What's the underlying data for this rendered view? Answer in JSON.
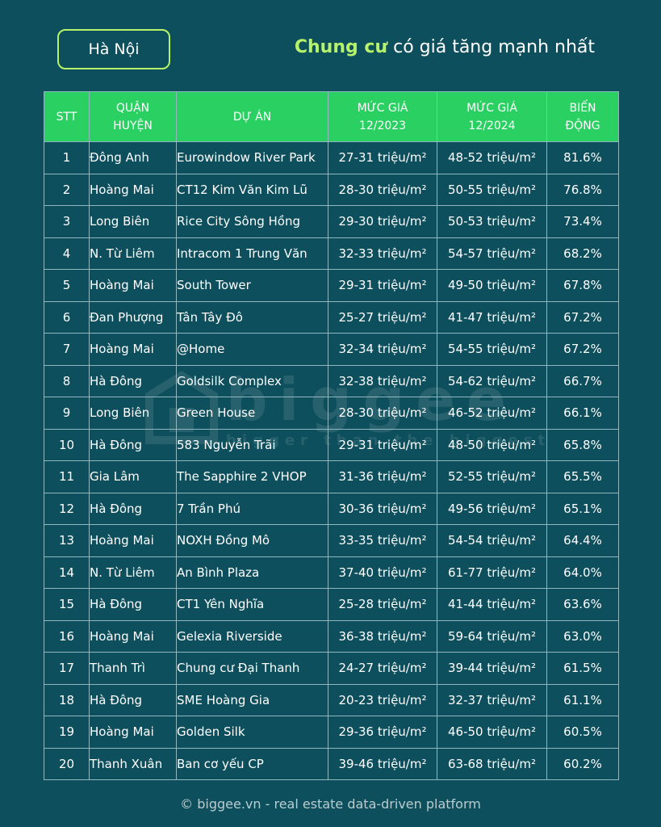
{
  "city": "Hà Nội",
  "headline": {
    "highlight": "Chung cư",
    "rest": " có giá tăng mạnh nhất"
  },
  "watermark": {
    "brand": "biggee",
    "slogan": "bigger than the biggest"
  },
  "footer": "© biggee.vn - real estate data-driven platform",
  "colors": {
    "background": "#0d4f5c",
    "header": "#2bd062",
    "accent": "#b7f36a"
  },
  "chart_data": {
    "type": "table",
    "columns": [
      {
        "key": "stt",
        "line1": "STT",
        "line2": ""
      },
      {
        "key": "district",
        "line1": "QUẬN",
        "line2": "HUYỆN"
      },
      {
        "key": "project",
        "line1": "DỰ ÁN",
        "line2": ""
      },
      {
        "key": "price_2023",
        "line1": "MỨC GIÁ",
        "line2": "12/2023"
      },
      {
        "key": "price_2024",
        "line1": "MỨC GIÁ",
        "line2": "12/2024"
      },
      {
        "key": "change",
        "line1": "BIẾN",
        "line2": "ĐỘNG"
      }
    ],
    "rows": [
      {
        "stt": "1",
        "district": "Đông Anh",
        "project": "Eurowindow River Park",
        "price_2023": "27-31 triệu/m²",
        "price_2024": "48-52 triệu/m²",
        "change": "81.6%"
      },
      {
        "stt": "2",
        "district": "Hoàng Mai",
        "project": "CT12 Kim Văn Kim Lũ",
        "price_2023": "28-30 triệu/m²",
        "price_2024": "50-55 triệu/m²",
        "change": "76.8%"
      },
      {
        "stt": "3",
        "district": "Long Biên",
        "project": "Rice City Sông Hồng",
        "price_2023": "29-30 triệu/m²",
        "price_2024": "50-53 triệu/m²",
        "change": "73.4%"
      },
      {
        "stt": "4",
        "district": "N. Từ Liêm",
        "project": "Intracom 1 Trung Văn",
        "price_2023": "32-33 triệu/m²",
        "price_2024": "54-57 triệu/m²",
        "change": "68.2%"
      },
      {
        "stt": "5",
        "district": "Hoàng Mai",
        "project": "South Tower",
        "price_2023": "29-31 triệu/m²",
        "price_2024": "49-50 triệu/m²",
        "change": "67.8%"
      },
      {
        "stt": "6",
        "district": "Đan Phượng",
        "project": "Tân Tây Đô",
        "price_2023": "25-27 triệu/m²",
        "price_2024": "41-47 triệu/m²",
        "change": "67.2%"
      },
      {
        "stt": "7",
        "district": "Hoàng Mai",
        "project": "@Home",
        "price_2023": "32-34 triệu/m²",
        "price_2024": "54-55 triệu/m²",
        "change": "67.2%"
      },
      {
        "stt": "8",
        "district": "Hà Đông",
        "project": "Goldsilk Complex",
        "price_2023": "32-38 triệu/m²",
        "price_2024": "54-62 triệu/m²",
        "change": "66.7%"
      },
      {
        "stt": "9",
        "district": "Long Biên",
        "project": "Green House",
        "price_2023": "28-30 triệu/m²",
        "price_2024": "46-52 triệu/m²",
        "change": "66.1%"
      },
      {
        "stt": "10",
        "district": "Hà Đông",
        "project": "583 Nguyễn Trãi",
        "price_2023": "29-31 triệu/m²",
        "price_2024": "48-50 triệu/m²",
        "change": "65.8%"
      },
      {
        "stt": "11",
        "district": "Gia Lâm",
        "project": "The Sapphire 2 VHOP",
        "price_2023": "31-36 triệu/m²",
        "price_2024": "52-55 triệu/m²",
        "change": "65.5%"
      },
      {
        "stt": "12",
        "district": "Hà Đông",
        "project": "7 Trần Phú",
        "price_2023": "30-36 triệu/m²",
        "price_2024": "49-56 triệu/m²",
        "change": "65.1%"
      },
      {
        "stt": "13",
        "district": "Hoàng Mai",
        "project": "NOXH Đồng Mô",
        "price_2023": "33-35 triệu/m²",
        "price_2024": "54-54 triệu/m²",
        "change": "64.4%"
      },
      {
        "stt": "14",
        "district": "N. Từ Liêm",
        "project": "An Bình Plaza",
        "price_2023": "37-40 triệu/m²",
        "price_2024": "61-77 triệu/m²",
        "change": "64.0%"
      },
      {
        "stt": "15",
        "district": "Hà Đông",
        "project": "CT1 Yên Nghĩa",
        "price_2023": "25-28 triệu/m²",
        "price_2024": "41-44 triệu/m²",
        "change": "63.6%"
      },
      {
        "stt": "16",
        "district": "Hoàng Mai",
        "project": "Gelexia Riverside",
        "price_2023": "36-38 triệu/m²",
        "price_2024": "59-64 triệu/m²",
        "change": "63.0%"
      },
      {
        "stt": "17",
        "district": "Thanh Trì",
        "project": "Chung cư Đại Thanh",
        "price_2023": "24-27 triệu/m²",
        "price_2024": "39-44 triệu/m²",
        "change": "61.5%"
      },
      {
        "stt": "18",
        "district": "Hà Đông",
        "project": "SME Hoàng Gia",
        "price_2023": "20-23 triệu/m²",
        "price_2024": "32-37 triệu/m²",
        "change": "61.1%"
      },
      {
        "stt": "19",
        "district": "Hoàng Mai",
        "project": "Golden Silk",
        "price_2023": "29-36 triệu/m²",
        "price_2024": "46-50 triệu/m²",
        "change": "60.5%"
      },
      {
        "stt": "20",
        "district": "Thanh Xuân",
        "project": "Ban cơ yếu CP",
        "price_2023": "39-46 triệu/m²",
        "price_2024": "63-68 triệu/m²",
        "change": "60.2%"
      }
    ]
  }
}
